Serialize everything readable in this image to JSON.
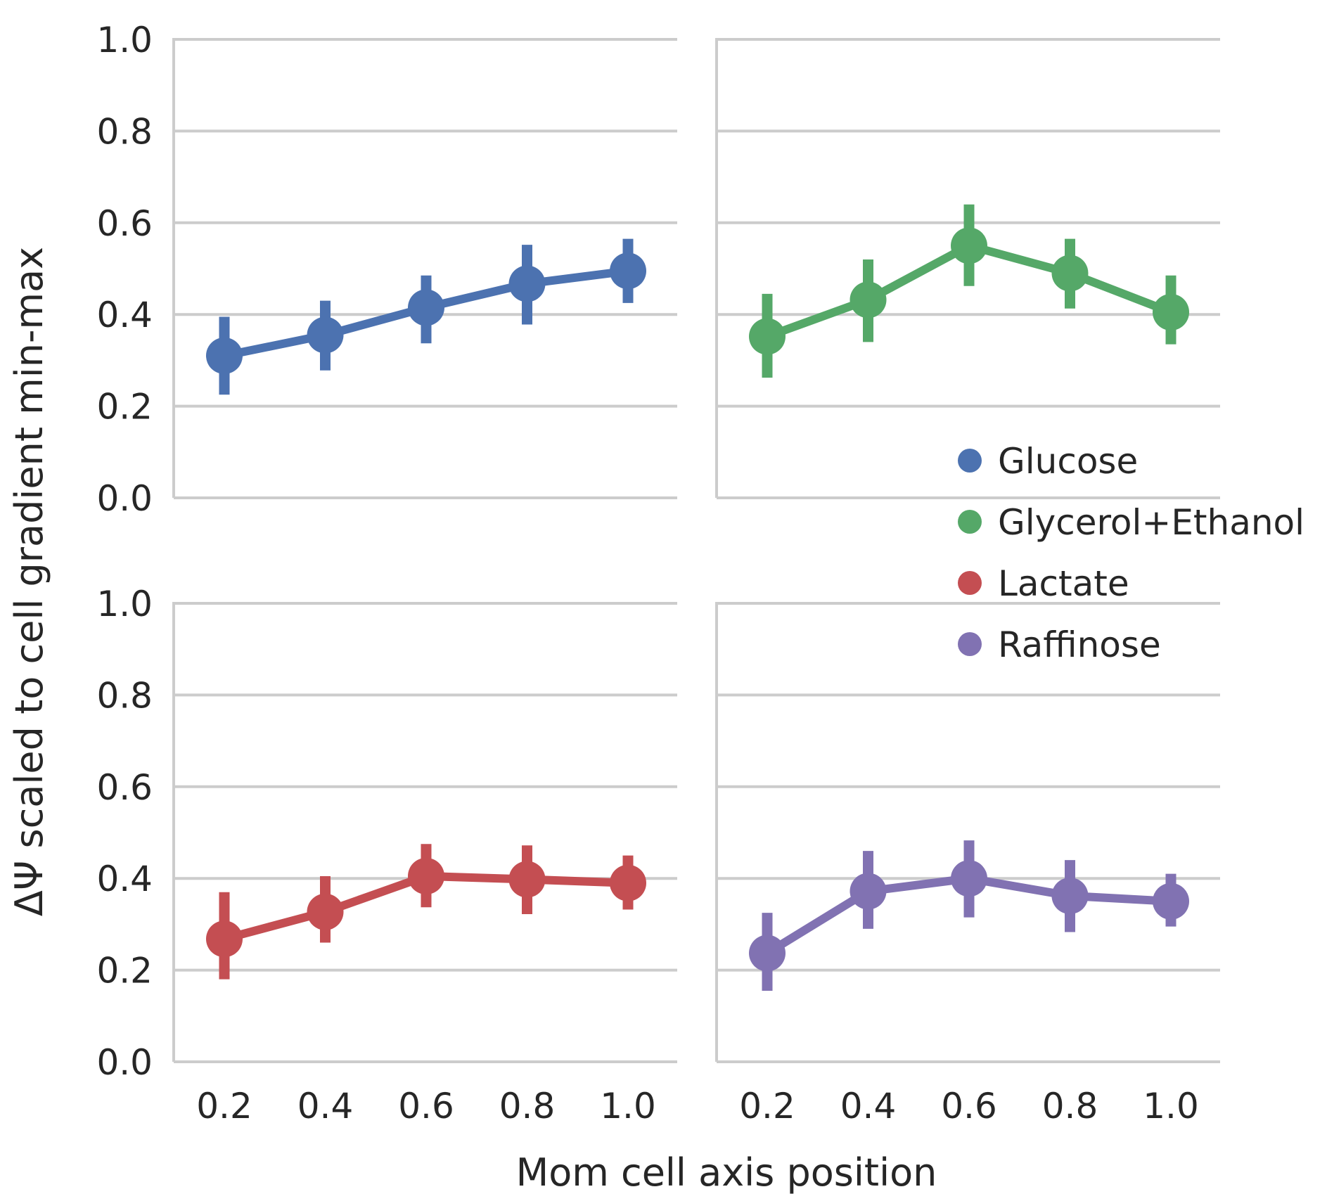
{
  "chart_data": {
    "type": "line",
    "xlabel": "Mom cell axis position",
    "ylabel": "ΔΨ scaled to cell gradient min-max",
    "x": [
      0.2,
      0.4,
      0.6,
      0.8,
      1.0
    ],
    "x_tick_labels": [
      "0.2",
      "0.4",
      "0.6",
      "0.8",
      "1.0"
    ],
    "y_tick_labels": [
      "0.0",
      "0.2",
      "0.4",
      "0.6",
      "0.8",
      "1.0"
    ],
    "ylim": [
      0,
      1
    ],
    "grid": "horizontal",
    "legend_placement": "right",
    "series": [
      {
        "name": "Glucose",
        "color": "#4c72b0",
        "values": [
          0.31,
          0.355,
          0.415,
          0.467,
          0.495
        ],
        "ci_low": [
          0.225,
          0.278,
          0.337,
          0.378,
          0.425
        ],
        "ci_high": [
          0.395,
          0.43,
          0.485,
          0.552,
          0.565
        ]
      },
      {
        "name": "Glycerol+Ethanol",
        "color": "#55a868",
        "values": [
          0.352,
          0.432,
          0.55,
          0.49,
          0.405
        ],
        "ci_low": [
          0.262,
          0.34,
          0.462,
          0.413,
          0.335
        ],
        "ci_high": [
          0.445,
          0.52,
          0.64,
          0.565,
          0.485
        ]
      },
      {
        "name": "Lactate",
        "color": "#c44e52",
        "values": [
          0.268,
          0.327,
          0.405,
          0.398,
          0.39
        ],
        "ci_low": [
          0.18,
          0.26,
          0.337,
          0.322,
          0.332
        ],
        "ci_high": [
          0.37,
          0.405,
          0.475,
          0.472,
          0.45
        ]
      },
      {
        "name": "Raffinose",
        "color": "#8172b2",
        "values": [
          0.237,
          0.372,
          0.4,
          0.362,
          0.35
        ],
        "ci_low": [
          0.155,
          0.29,
          0.315,
          0.283,
          0.295
        ],
        "ci_high": [
          0.325,
          0.46,
          0.483,
          0.44,
          0.41
        ]
      }
    ]
  }
}
